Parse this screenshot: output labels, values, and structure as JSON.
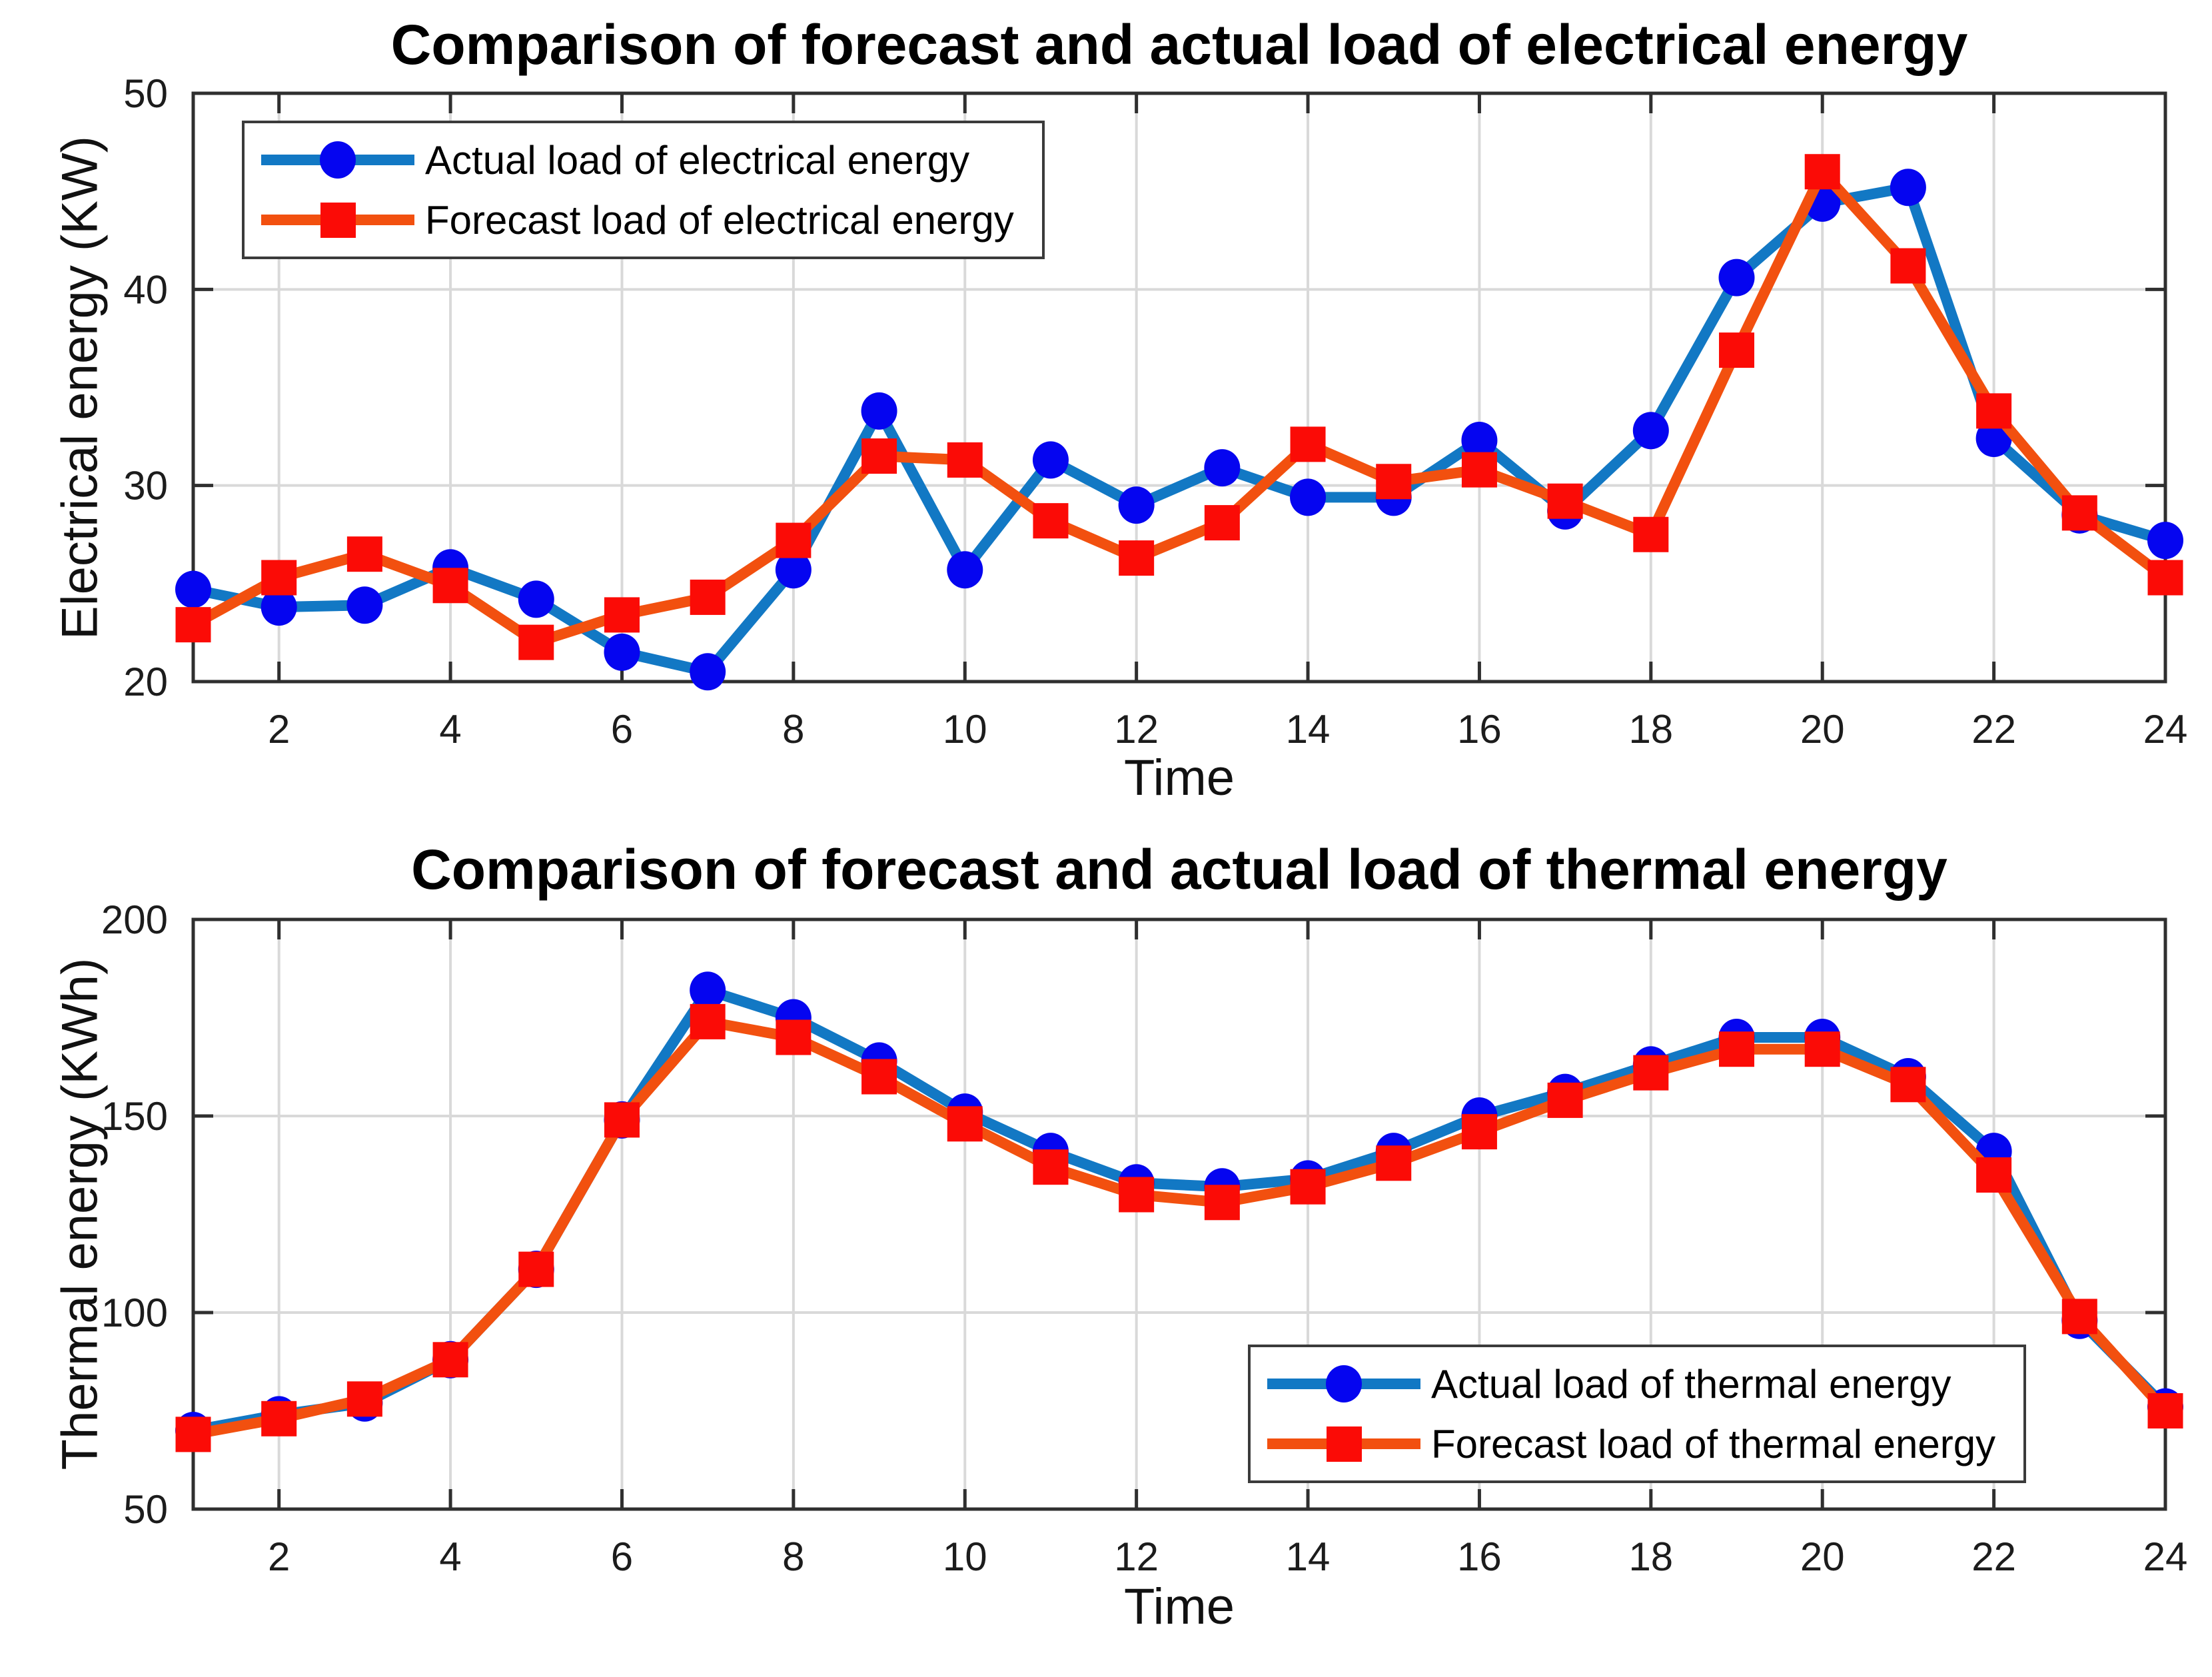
{
  "figure": {
    "background": "#ffffff"
  },
  "colors": {
    "actual_line": "#1278c4",
    "actual_marker": "#0505f0",
    "forecast_line": "#f2500f",
    "forecast_marker": "#fb0b06",
    "grid": "#d9d9d9",
    "axis": "#2f2f2f",
    "tick_text": "#1c1c1c"
  },
  "chart_data": [
    {
      "type": "line",
      "title": "Comparison of forecast and actual load of electrical energy",
      "xlabel": "Time",
      "ylabel": "Electrical energy (KW)",
      "x": [
        1,
        2,
        3,
        4,
        5,
        6,
        7,
        8,
        9,
        10,
        11,
        12,
        13,
        14,
        15,
        16,
        17,
        18,
        19,
        20,
        21,
        22,
        23,
        24
      ],
      "xlim": [
        1,
        24
      ],
      "ylim": [
        20,
        50
      ],
      "xticks": [
        2,
        4,
        6,
        8,
        10,
        12,
        14,
        16,
        18,
        20,
        22,
        24
      ],
      "yticks": [
        20,
        30,
        40,
        50
      ],
      "grid": "on",
      "legend_position": "top-left",
      "series": [
        {
          "name": "Actual load of electrical energy",
          "role": "actual",
          "marker": "circle",
          "values": [
            24.7,
            23.8,
            23.9,
            25.8,
            24.2,
            21.5,
            20.5,
            25.7,
            33.8,
            25.7,
            31.3,
            29.0,
            30.9,
            29.4,
            29.4,
            32.3,
            28.7,
            32.8,
            40.6,
            44.4,
            45.2,
            32.4,
            28.5,
            27.2
          ]
        },
        {
          "name": "Forecast load of electrical energy",
          "role": "forecast",
          "marker": "square",
          "values": [
            22.9,
            25.3,
            26.5,
            24.9,
            22.0,
            23.4,
            24.3,
            27.2,
            31.5,
            31.3,
            28.2,
            26.3,
            28.1,
            32.1,
            30.2,
            30.8,
            29.2,
            27.5,
            36.9,
            46.0,
            41.2,
            33.8,
            28.6,
            25.3
          ]
        }
      ]
    },
    {
      "type": "line",
      "title": "Comparison of forecast and actual load of thermal energy",
      "xlabel": "Time",
      "ylabel": "Thermal energy (KWh)",
      "x": [
        1,
        2,
        3,
        4,
        5,
        6,
        7,
        8,
        9,
        10,
        11,
        12,
        13,
        14,
        15,
        16,
        17,
        18,
        19,
        20,
        21,
        22,
        23,
        24
      ],
      "xlim": [
        1,
        24
      ],
      "ylim": [
        50,
        200
      ],
      "xticks": [
        2,
        4,
        6,
        8,
        10,
        12,
        14,
        16,
        18,
        20,
        22,
        24
      ],
      "yticks": [
        50,
        100,
        150,
        200
      ],
      "grid": "on",
      "legend_position": "bottom-right",
      "series": [
        {
          "name": "Actual load of thermal energy",
          "role": "actual",
          "marker": "circle",
          "values": [
            70,
            74,
            77,
            88,
            111,
            149,
            182,
            175,
            164,
            151,
            141,
            133,
            132,
            134,
            141,
            150,
            156,
            163,
            170,
            170,
            160,
            141,
            98,
            76
          ]
        },
        {
          "name": "Forecast load of thermal energy",
          "role": "forecast",
          "marker": "square",
          "values": [
            69,
            73,
            78,
            88,
            111,
            149,
            174,
            170,
            160,
            148,
            137,
            130,
            128,
            132,
            138,
            146,
            154,
            161,
            167,
            167,
            158,
            135,
            99,
            75
          ]
        }
      ]
    }
  ]
}
